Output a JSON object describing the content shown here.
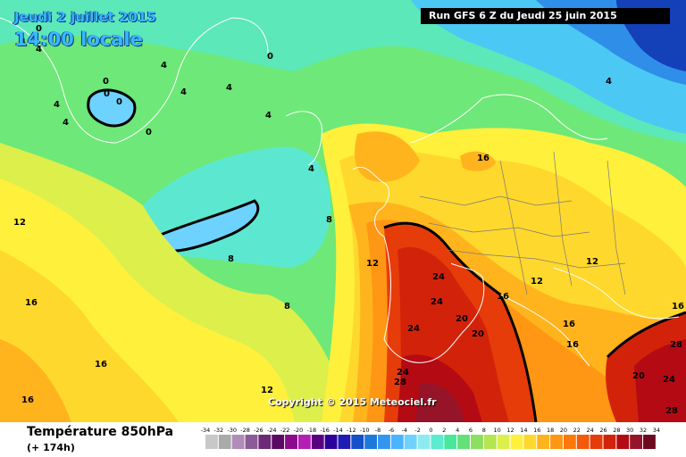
{
  "header": {
    "date_label": "Jeudi 2 juillet 2015",
    "time_label": "14:00 locale",
    "run_label": "Run GFS 6 Z du Jeudi 25 juin 2015"
  },
  "footer": {
    "variable_label": "Température 850hPa",
    "lead_label": "(+ 174h)",
    "copyright": "Copyright © 2015 Meteociel.fr"
  },
  "legend": {
    "ticks": [
      "-34",
      "-32",
      "-30",
      "-28",
      "-26",
      "-24",
      "-22",
      "-20",
      "-18",
      "-16",
      "-14",
      "-12",
      "-10",
      "-8",
      "-6",
      "-4",
      "-2",
      "0",
      "2",
      "4",
      "6",
      "8",
      "10",
      "12",
      "14",
      "16",
      "18",
      "20",
      "22",
      "24",
      "26",
      "28",
      "30",
      "32",
      "34"
    ],
    "colors": [
      "#c8c8c8",
      "#aaaaaa",
      "#b08cb8",
      "#8c5a96",
      "#6e2878",
      "#5a0a64",
      "#8c0a8c",
      "#b41eb4",
      "#5a0082",
      "#2d009b",
      "#1e1eb4",
      "#1450c8",
      "#1e78dc",
      "#3296f0",
      "#4bb4ff",
      "#6ed2ff",
      "#8cebf0",
      "#5cecd0",
      "#48e89c",
      "#64e078",
      "#8ce060",
      "#b4e650",
      "#dcef4b",
      "#fff03c",
      "#ffd82d",
      "#ffb41e",
      "#ff9614",
      "#ff780a",
      "#f55a0a",
      "#e63c0a",
      "#d2230a",
      "#b40a14",
      "#961428",
      "#6e0a1e",
      "#460014"
    ]
  },
  "map_labels": [
    {
      "text": "0"
    },
    {
      "text": "0"
    },
    {
      "text": "0"
    },
    {
      "text": "0"
    },
    {
      "text": "0"
    },
    {
      "text": "0"
    },
    {
      "text": "4"
    },
    {
      "text": "4"
    },
    {
      "text": "4"
    },
    {
      "text": "4"
    },
    {
      "text": "4"
    },
    {
      "text": "4"
    },
    {
      "text": "4"
    },
    {
      "text": "4"
    },
    {
      "text": "4"
    },
    {
      "text": "4"
    },
    {
      "text": "8"
    },
    {
      "text": "8"
    },
    {
      "text": "8"
    },
    {
      "text": "12"
    },
    {
      "text": "12"
    },
    {
      "text": "12"
    },
    {
      "text": "12"
    },
    {
      "text": "12"
    },
    {
      "text": "16"
    },
    {
      "text": "16"
    },
    {
      "text": "16"
    },
    {
      "text": "16"
    },
    {
      "text": "16"
    },
    {
      "text": "16"
    },
    {
      "text": "16"
    },
    {
      "text": "16"
    },
    {
      "text": "20"
    },
    {
      "text": "20"
    },
    {
      "text": "20"
    },
    {
      "text": "24"
    },
    {
      "text": "24"
    },
    {
      "text": "24"
    },
    {
      "text": "24"
    },
    {
      "text": "24"
    },
    {
      "text": "28"
    },
    {
      "text": "28"
    },
    {
      "text": "28"
    }
  ]
}
